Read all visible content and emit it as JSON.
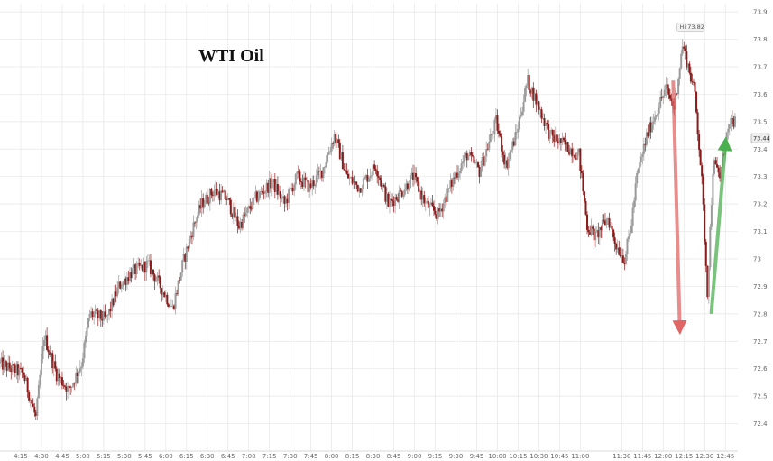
{
  "chart_data": {
    "type": "candlestick",
    "title": "WTI Oil",
    "xlabel": "",
    "ylabel": "",
    "ylim": [
      72.3,
      73.93
    ],
    "y_ticks": [
      "73.9",
      "73.8",
      "73.7",
      "73.6",
      "73.5",
      "73.4",
      "73.3",
      "73.2",
      "73.1",
      "73",
      "72.9",
      "72.8",
      "72.7",
      "72.6",
      "72.5",
      "72.4"
    ],
    "x_ticks": [
      "4:15",
      "4:30",
      "4:45",
      "5:00",
      "5:15",
      "5:30",
      "5:45",
      "6:00",
      "6:15",
      "6:30",
      "6:45",
      "7:00",
      "7:15",
      "7:30",
      "7:45",
      "8:00",
      "8:15",
      "8:30",
      "8:45",
      "9:00",
      "9:15",
      "9:30",
      "9:45",
      "10:00",
      "10:15",
      "10:30",
      "10:45",
      "11:00",
      "11:30",
      "11:45",
      "12:00",
      "12:15",
      "12:30",
      "12:45"
    ],
    "x_tick_values": [
      4.25,
      4.5,
      4.75,
      5.0,
      5.25,
      5.5,
      5.75,
      6.0,
      6.25,
      6.5,
      6.75,
      7.0,
      7.25,
      7.5,
      7.75,
      8.0,
      8.25,
      8.5,
      8.75,
      9.0,
      9.25,
      9.5,
      9.75,
      10.0,
      10.25,
      10.5,
      10.75,
      11.0,
      11.5,
      11.75,
      12.0,
      12.25,
      12.5,
      12.75
    ],
    "anchors": [
      [
        4.0,
        72.62
      ],
      [
        4.3,
        72.58
      ],
      [
        4.45,
        72.42
      ],
      [
        4.55,
        72.72
      ],
      [
        4.7,
        72.58
      ],
      [
        4.85,
        72.52
      ],
      [
        5.0,
        72.62
      ],
      [
        5.1,
        72.8
      ],
      [
        5.3,
        72.78
      ],
      [
        5.45,
        72.9
      ],
      [
        5.6,
        72.95
      ],
      [
        5.8,
        72.98
      ],
      [
        5.95,
        72.9
      ],
      [
        6.1,
        72.82
      ],
      [
        6.22,
        72.98
      ],
      [
        6.35,
        73.12
      ],
      [
        6.45,
        73.2
      ],
      [
        6.6,
        73.25
      ],
      [
        6.75,
        73.22
      ],
      [
        6.9,
        73.12
      ],
      [
        7.1,
        73.22
      ],
      [
        7.3,
        73.28
      ],
      [
        7.45,
        73.2
      ],
      [
        7.6,
        73.3
      ],
      [
        7.75,
        73.26
      ],
      [
        7.9,
        73.32
      ],
      [
        8.05,
        73.45
      ],
      [
        8.2,
        73.3
      ],
      [
        8.35,
        73.26
      ],
      [
        8.55,
        73.34
      ],
      [
        8.7,
        73.2
      ],
      [
        8.85,
        73.24
      ],
      [
        9.0,
        73.3
      ],
      [
        9.15,
        73.2
      ],
      [
        9.3,
        73.16
      ],
      [
        9.5,
        73.3
      ],
      [
        9.65,
        73.38
      ],
      [
        9.8,
        73.32
      ],
      [
        10.0,
        73.5
      ],
      [
        10.12,
        73.34
      ],
      [
        10.25,
        73.46
      ],
      [
        10.38,
        73.65
      ],
      [
        10.52,
        73.55
      ],
      [
        10.65,
        73.45
      ],
      [
        10.8,
        73.42
      ],
      [
        11.0,
        73.38
      ],
      [
        11.1,
        73.12
      ],
      [
        11.2,
        73.08
      ],
      [
        11.35,
        73.15
      ],
      [
        11.45,
        73.05
      ],
      [
        11.55,
        73.0
      ],
      [
        11.62,
        73.1
      ],
      [
        11.7,
        73.3
      ],
      [
        11.82,
        73.45
      ],
      [
        11.95,
        73.55
      ],
      [
        12.05,
        73.62
      ],
      [
        12.15,
        73.55
      ],
      [
        12.25,
        73.78
      ],
      [
        12.32,
        73.7
      ],
      [
        12.4,
        73.6
      ],
      [
        12.48,
        73.3
      ],
      [
        12.55,
        72.88
      ],
      [
        12.62,
        73.35
      ],
      [
        12.7,
        73.3
      ],
      [
        12.78,
        73.45
      ],
      [
        12.85,
        73.5
      ]
    ],
    "annotations": [
      {
        "label": "Hi 73.82",
        "x": 12.22,
        "y": 73.82
      },
      {
        "label": "73.44",
        "x": 12.87,
        "y": 73.44
      }
    ],
    "arrows": [
      {
        "color": "#e06666",
        "direction": "down",
        "from": [
          12.12,
          73.65
        ],
        "to": [
          12.2,
          72.75
        ]
      },
      {
        "color": "#4caf50",
        "direction": "up",
        "from": [
          12.58,
          72.8
        ],
        "to": [
          12.75,
          73.42
        ]
      }
    ],
    "colors": {
      "down": "#8b1a1a",
      "up": "#9a9a9a",
      "grid": "#e6e6e6",
      "axis_text": "#666666"
    },
    "grid": true
  }
}
